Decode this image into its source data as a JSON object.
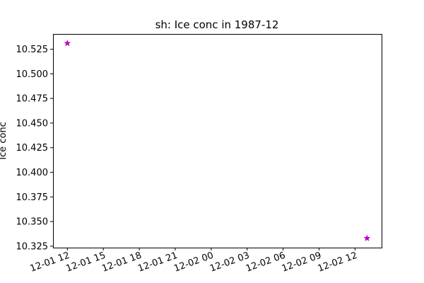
{
  "chart_data": {
    "type": "scatter",
    "title": "sh: Ice conc in 1987-12",
    "xlabel": "",
    "ylabel": "Ice conc",
    "xlim": [
      "1987-12-01 10:48",
      "1987-12-02 14:13"
    ],
    "ylim": [
      10.3235,
      10.5405
    ],
    "x_ticks": [
      {
        "value": "1987-12-01 12:00",
        "label": "12-01 12"
      },
      {
        "value": "1987-12-01 15:00",
        "label": "12-01 15"
      },
      {
        "value": "1987-12-01 18:00",
        "label": "12-01 18"
      },
      {
        "value": "1987-12-01 21:00",
        "label": "12-01 21"
      },
      {
        "value": "1987-12-02 00:00",
        "label": "12-02 00"
      },
      {
        "value": "1987-12-02 03:00",
        "label": "12-02 03"
      },
      {
        "value": "1987-12-02 06:00",
        "label": "12-02 06"
      },
      {
        "value": "1987-12-02 09:00",
        "label": "12-02 09"
      },
      {
        "value": "1987-12-02 12:00",
        "label": "12-02 12"
      }
    ],
    "y_ticks": [
      {
        "value": 10.325,
        "label": "10.325"
      },
      {
        "value": 10.35,
        "label": "10.350"
      },
      {
        "value": 10.375,
        "label": "10.375"
      },
      {
        "value": 10.4,
        "label": "10.400"
      },
      {
        "value": 10.425,
        "label": "10.425"
      },
      {
        "value": 10.45,
        "label": "10.450"
      },
      {
        "value": 10.475,
        "label": "10.475"
      },
      {
        "value": 10.5,
        "label": "10.500"
      },
      {
        "value": 10.525,
        "label": "10.525"
      }
    ],
    "series": [
      {
        "color": "#bf00bf",
        "marker": "star",
        "points": [
          {
            "x": "1987-12-01 12:00",
            "y": 10.531
          },
          {
            "x": "1987-12-02 13:00",
            "y": 10.333
          }
        ]
      }
    ],
    "grid": false
  }
}
